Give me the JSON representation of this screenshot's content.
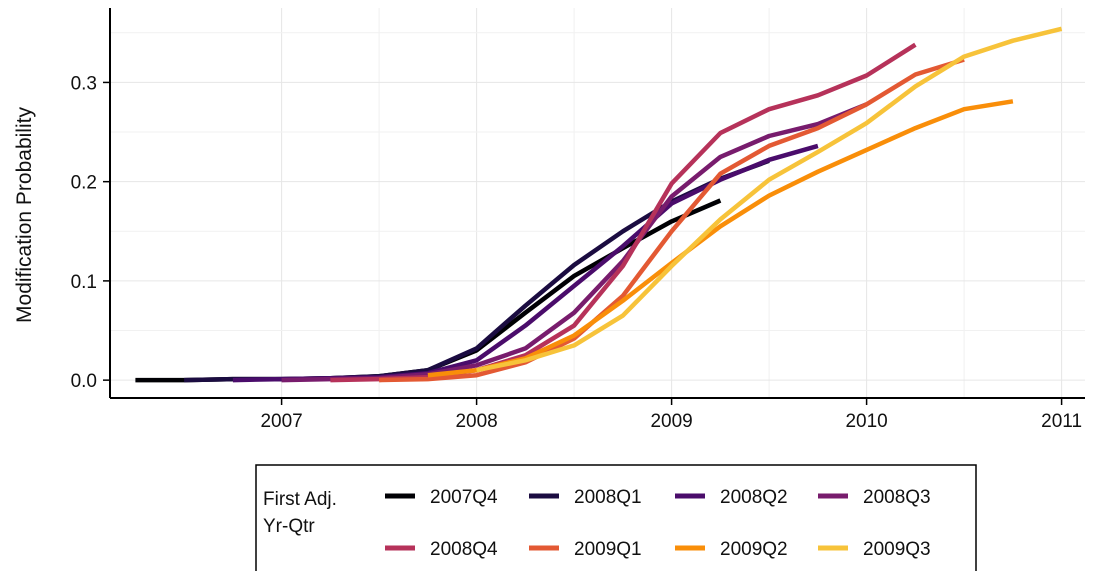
{
  "chart_data": {
    "type": "line",
    "ylabel": "Modification Probability",
    "xlabel": "",
    "xlim": [
      2006.12,
      2011.12
    ],
    "ylim": [
      -0.018,
      0.375
    ],
    "x_ticks": [
      2007,
      2008,
      2009,
      2010,
      2011
    ],
    "x_tick_labels": [
      "2007",
      "2008",
      "2009",
      "2010",
      "2011"
    ],
    "y_ticks": [
      0.0,
      0.1,
      0.2,
      0.3
    ],
    "y_tick_labels": [
      "0.0",
      "0.1",
      "0.2",
      "0.3"
    ],
    "grid": true,
    "legend": {
      "title_lines": [
        "First Adj.",
        "Yr-Qtr"
      ],
      "placement": "bottom"
    },
    "series": [
      {
        "name": "2007Q4",
        "color": "#000004",
        "x": [
          2006.25,
          2006.5,
          2006.75,
          2007.0,
          2007.25,
          2007.5,
          2007.75,
          2008.0,
          2008.25,
          2008.5,
          2008.75,
          2009.0,
          2009.25
        ],
        "y": [
          0.0,
          0.0,
          0.001,
          0.001,
          0.002,
          0.004,
          0.01,
          0.03,
          0.068,
          0.105,
          0.133,
          0.16,
          0.181
        ]
      },
      {
        "name": "2008Q1",
        "color": "#1b0c41",
        "x": [
          2006.5,
          2006.75,
          2007.0,
          2007.25,
          2007.5,
          2007.75,
          2008.0,
          2008.25,
          2008.5,
          2008.75,
          2009.0,
          2009.25,
          2009.5
        ],
        "y": [
          0.0,
          0.001,
          0.001,
          0.002,
          0.004,
          0.01,
          0.032,
          0.075,
          0.116,
          0.15,
          0.18,
          0.203,
          0.221
        ]
      },
      {
        "name": "2008Q2",
        "color": "#4a0c6b",
        "x": [
          2006.75,
          2007.0,
          2007.25,
          2007.5,
          2007.75,
          2008.0,
          2008.25,
          2008.5,
          2008.75,
          2009.0,
          2009.25,
          2009.5,
          2009.75
        ],
        "y": [
          0.0,
          0.001,
          0.002,
          0.003,
          0.007,
          0.02,
          0.055,
          0.095,
          0.135,
          0.178,
          0.202,
          0.222,
          0.236
        ]
      },
      {
        "name": "2008Q3",
        "color": "#781c6d",
        "x": [
          2007.0,
          2007.25,
          2007.5,
          2007.75,
          2008.0,
          2008.25,
          2008.5,
          2008.75,
          2009.0,
          2009.25,
          2009.5,
          2009.75,
          2010.0
        ],
        "y": [
          0.0,
          0.001,
          0.002,
          0.006,
          0.015,
          0.032,
          0.068,
          0.12,
          0.185,
          0.225,
          0.246,
          0.258,
          0.278
        ]
      },
      {
        "name": "2008Q4",
        "color": "#b6325a",
        "x": [
          2007.25,
          2007.5,
          2007.75,
          2008.0,
          2008.25,
          2008.5,
          2008.75,
          2009.0,
          2009.25,
          2009.5,
          2009.75,
          2010.0,
          2010.25
        ],
        "y": [
          0.0,
          0.001,
          0.003,
          0.01,
          0.025,
          0.055,
          0.115,
          0.198,
          0.249,
          0.273,
          0.287,
          0.307,
          0.338
        ]
      },
      {
        "name": "2009Q1",
        "color": "#e35933",
        "x": [
          2007.5,
          2007.75,
          2008.0,
          2008.25,
          2008.5,
          2008.75,
          2009.0,
          2009.25,
          2009.5,
          2009.75,
          2010.0,
          2010.25,
          2010.5
        ],
        "y": [
          0.0,
          0.001,
          0.005,
          0.018,
          0.042,
          0.085,
          0.15,
          0.208,
          0.236,
          0.254,
          0.278,
          0.308,
          0.323
        ]
      },
      {
        "name": "2009Q2",
        "color": "#f98e09",
        "x": [
          2007.75,
          2008.0,
          2008.25,
          2008.5,
          2008.75,
          2009.0,
          2009.25,
          2009.5,
          2009.75,
          2010.0,
          2010.25,
          2010.5,
          2010.75
        ],
        "y": [
          0.005,
          0.01,
          0.022,
          0.045,
          0.08,
          0.118,
          0.155,
          0.186,
          0.21,
          0.232,
          0.254,
          0.273,
          0.281
        ]
      },
      {
        "name": "2009Q3",
        "color": "#f7c33a",
        "x": [
          2008.0,
          2008.25,
          2008.5,
          2008.75,
          2009.0,
          2009.25,
          2009.5,
          2009.75,
          2010.0,
          2010.25,
          2010.5,
          2010.75,
          2011.0
        ],
        "y": [
          0.01,
          0.02,
          0.035,
          0.065,
          0.115,
          0.162,
          0.202,
          0.23,
          0.259,
          0.296,
          0.326,
          0.342,
          0.354
        ]
      }
    ]
  }
}
